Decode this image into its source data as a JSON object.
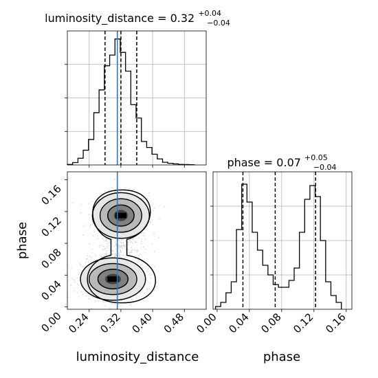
{
  "chart_data": {
    "type": "corner",
    "parameters": [
      "luminosity_distance",
      "phase"
    ],
    "truth": {
      "luminosity_distance": 0.311
    },
    "panels": [
      {
        "id": "hist-luminosity-distance",
        "type": "histogram",
        "title": {
          "main": "luminosity_distance = 0.32",
          "sup": "+0.04",
          "sub": "−0.04"
        },
        "xlim": [
          0.185,
          0.535
        ],
        "ylim": [
          0,
          1
        ],
        "quantiles": [
          0.28,
          0.32,
          0.36
        ],
        "truth_line": 0.311,
        "bin_edges": [
          0.185,
          0.1983,
          0.2117,
          0.225,
          0.2383,
          0.2517,
          0.265,
          0.2783,
          0.2917,
          0.305,
          0.3183,
          0.3317,
          0.345,
          0.3583,
          0.3717,
          0.385,
          0.3983,
          0.4117,
          0.425,
          0.4383,
          0.4517,
          0.465,
          0.4783,
          0.4917,
          0.505
        ],
        "counts": [
          0.004,
          0.018,
          0.05,
          0.11,
          0.19,
          0.39,
          0.56,
          0.74,
          0.82,
          0.94,
          0.84,
          0.7,
          0.45,
          0.35,
          0.175,
          0.13,
          0.08,
          0.045,
          0.02,
          0.012,
          0.008,
          0.004,
          0.003,
          0.002
        ]
      },
      {
        "id": "hist-phase",
        "type": "histogram",
        "title": {
          "main": "phase = 0.07",
          "sup": "+0.05",
          "sub": "−0.04"
        },
        "xlim": [
          -0.005,
          0.167
        ],
        "ylim": [
          0,
          1
        ],
        "quantiles": [
          0.032,
          0.072,
          0.122
        ],
        "bin_edges": [
          -0.002,
          0.0045,
          0.011,
          0.0175,
          0.024,
          0.0305,
          0.037,
          0.0435,
          0.05,
          0.0565,
          0.063,
          0.0695,
          0.076,
          0.0825,
          0.089,
          0.0955,
          0.102,
          0.1085,
          0.115,
          0.1215,
          0.128,
          0.1345,
          0.141,
          0.1475,
          0.154
        ],
        "counts": [
          0.02,
          0.05,
          0.12,
          0.2,
          0.58,
          0.91,
          0.78,
          0.56,
          0.43,
          0.32,
          0.25,
          0.18,
          0.16,
          0.16,
          0.21,
          0.3,
          0.56,
          0.8,
          0.9,
          0.82,
          0.5,
          0.2,
          0.1,
          0.05
        ]
      },
      {
        "id": "joint-luminosity-distance-phase",
        "type": "scatter_contour",
        "xlim": [
          0.185,
          0.535
        ],
        "ylim": [
          -0.003,
          0.17
        ],
        "truth_line_x": 0.311,
        "modes": [
          {
            "x": 0.32,
            "y": 0.115,
            "sx": 0.035,
            "sy": 0.014
          },
          {
            "x": 0.3,
            "y": 0.035,
            "sx": 0.04,
            "sy": 0.013
          }
        ],
        "contour_levels": 3
      }
    ],
    "axes": {
      "x_bottom_left": {
        "label": "luminosity_distance",
        "ticks": [
          0.24,
          0.32,
          0.4,
          0.48
        ],
        "tick_labels": [
          "0.24",
          "0.32",
          "0.40",
          "0.48"
        ]
      },
      "y_left": {
        "label": "phase",
        "ticks": [
          0.0,
          0.04,
          0.08,
          0.12,
          0.16
        ],
        "tick_labels": [
          "0.00",
          "0.04",
          "0.08",
          "0.12",
          "0.16"
        ]
      },
      "x_bottom_right": {
        "label": "phase",
        "ticks": [
          0.0,
          0.04,
          0.08,
          0.12,
          0.16
        ],
        "tick_labels": [
          "0.00",
          "0.04",
          "0.08",
          "0.12",
          "0.16"
        ]
      }
    },
    "grid": true,
    "colors": {
      "line": "#000000",
      "truth": "#3b75af",
      "grid": "#b0b0b0",
      "points": "#c8c8c8"
    }
  }
}
